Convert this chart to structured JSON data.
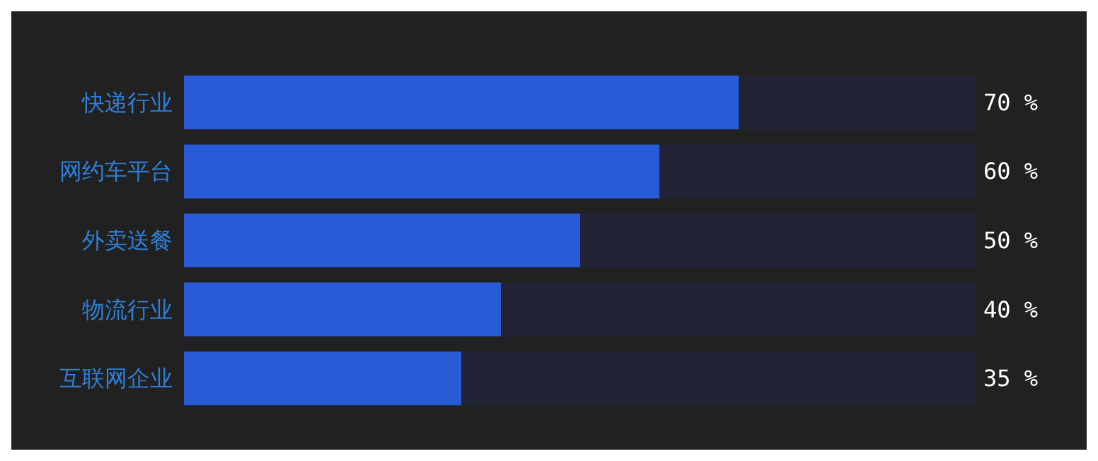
{
  "chart_data": {
    "type": "bar",
    "orientation": "horizontal",
    "categories": [
      "快递行业",
      "网约车平台",
      "外卖送餐",
      "物流行业",
      "互联网企业"
    ],
    "values": [
      70,
      60,
      50,
      40,
      35
    ],
    "color": "#2a5bd7",
    "value_labels": [
      "70 %",
      "60 %",
      "50 %",
      "40 %",
      "35 %"
    ],
    "xlim": [
      0,
      100
    ],
    "tick_labels": "y"
  }
}
